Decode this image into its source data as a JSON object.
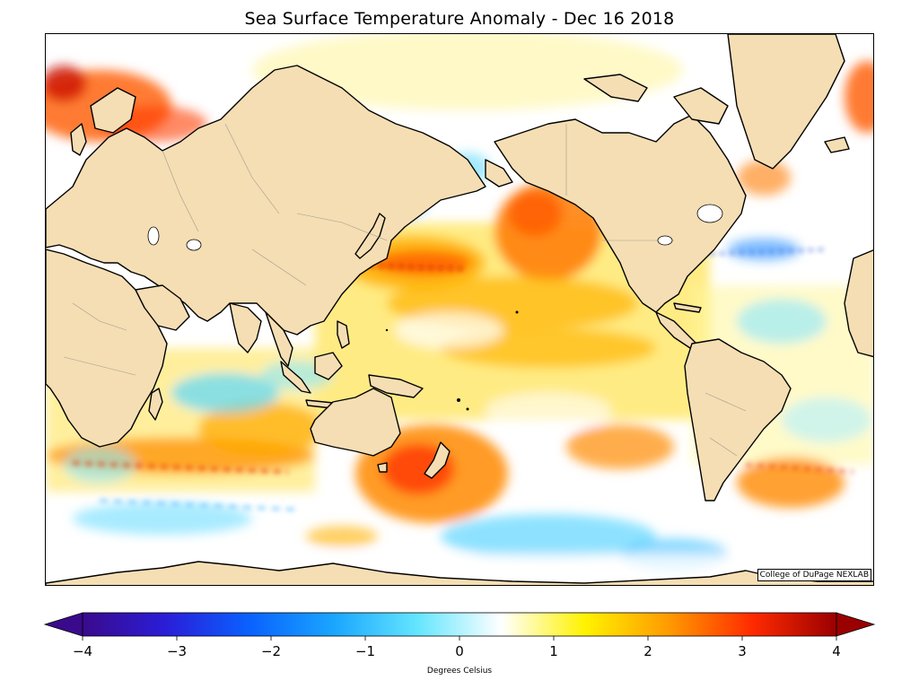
{
  "title": "Sea Surface Temperature Anomaly - Dec 16 2018",
  "credit": "College of DuPage NEXLAB",
  "colorbar": {
    "unit_label": "Degrees Celsius",
    "min": -4,
    "max": 4,
    "ticks": [
      "−4",
      "−3",
      "−2",
      "−1",
      "0",
      "1",
      "2",
      "3",
      "4"
    ],
    "colors": [
      "#3a0a8c",
      "#2a1ed8",
      "#0a62ff",
      "#1aa6ff",
      "#64e6ff",
      "#ffffff",
      "#fff200",
      "#ff9a00",
      "#ff2a00",
      "#9a0000"
    ]
  },
  "map": {
    "land_color": "#f5deb3",
    "coast_color": "#000000",
    "border_color": "#8a8a8a",
    "projection": "equirectangular, centered on Pacific"
  }
}
